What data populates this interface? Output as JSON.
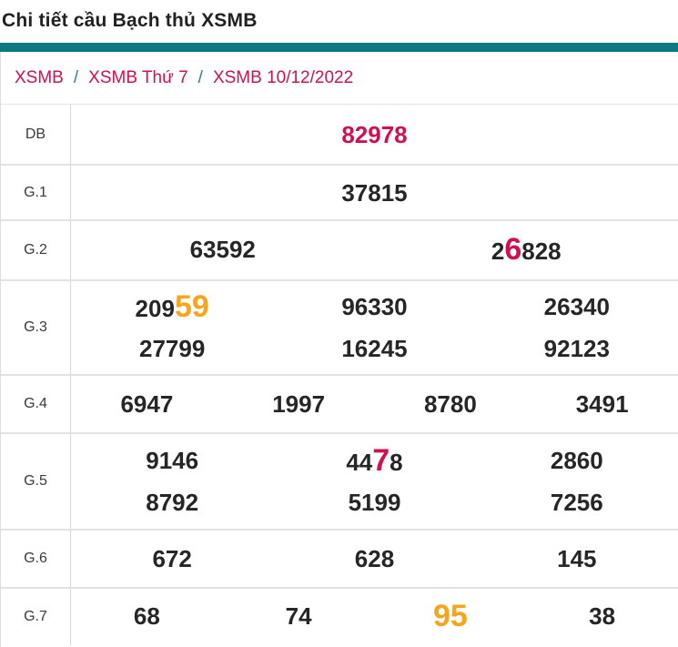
{
  "page_title": "Chi tiết cầu Bạch thủ XSMB",
  "breadcrumb": {
    "separator": "/",
    "items": [
      {
        "label": "XSMB"
      },
      {
        "label": "XSMB Thứ 7"
      },
      {
        "label": "XSMB 10/12/2022"
      }
    ]
  },
  "colors": {
    "accent_bar": "#0b7a80",
    "breadcrumb_link": "#d01050",
    "breadcrumb_separator": "#2b7f92",
    "highlight_red": "#d01050",
    "highlight_orange": "#f8a51b",
    "number_dark": "#262626"
  },
  "prize_table": {
    "rows": [
      {
        "label": "DB",
        "lines": [
          [
            [
              {
                "t": "82978",
                "hl": "red"
              }
            ]
          ]
        ]
      },
      {
        "label": "G.1",
        "lines": [
          [
            [
              {
                "t": "37815"
              }
            ]
          ]
        ]
      },
      {
        "label": "G.2",
        "lines": [
          [
            [
              {
                "t": "63592"
              }
            ],
            [
              {
                "t": "2"
              },
              {
                "t": "6",
                "hl": "red",
                "big": true
              },
              {
                "t": "828"
              }
            ]
          ]
        ]
      },
      {
        "label": "G.3",
        "lines": [
          [
            [
              {
                "t": "209"
              },
              {
                "t": "59",
                "hl": "orange",
                "big": true
              }
            ],
            [
              {
                "t": "96330"
              }
            ],
            [
              {
                "t": "26340"
              }
            ]
          ],
          [
            [
              {
                "t": "27799"
              }
            ],
            [
              {
                "t": "16245"
              }
            ],
            [
              {
                "t": "92123"
              }
            ]
          ]
        ]
      },
      {
        "label": "G.4",
        "lines": [
          [
            [
              {
                "t": "6947"
              }
            ],
            [
              {
                "t": "1997"
              }
            ],
            [
              {
                "t": "8780"
              }
            ],
            [
              {
                "t": "3491"
              }
            ]
          ]
        ]
      },
      {
        "label": "G.5",
        "lines": [
          [
            [
              {
                "t": "9146"
              }
            ],
            [
              {
                "t": "44"
              },
              {
                "t": "7",
                "hl": "red",
                "big": true
              },
              {
                "t": "8"
              }
            ],
            [
              {
                "t": "2860"
              }
            ]
          ],
          [
            [
              {
                "t": "8792"
              }
            ],
            [
              {
                "t": "5199"
              }
            ],
            [
              {
                "t": "7256"
              }
            ]
          ]
        ]
      },
      {
        "label": "G.6",
        "lines": [
          [
            [
              {
                "t": "672"
              }
            ],
            [
              {
                "t": "628"
              }
            ],
            [
              {
                "t": "145"
              }
            ]
          ]
        ]
      },
      {
        "label": "G.7",
        "lines": [
          [
            [
              {
                "t": "68"
              }
            ],
            [
              {
                "t": "74"
              }
            ],
            [
              {
                "t": "95",
                "hl": "orange",
                "big": true
              }
            ],
            [
              {
                "t": "38"
              }
            ]
          ]
        ]
      }
    ]
  }
}
